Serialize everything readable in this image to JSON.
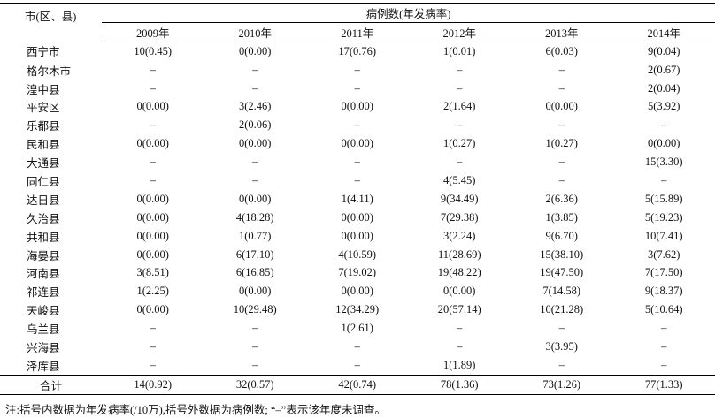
{
  "table": {
    "header": {
      "region": "市(区、县)",
      "group": "病例数(年发病率)",
      "years": [
        "2009年",
        "2010年",
        "2011年",
        "2012年",
        "2013年",
        "2014年"
      ]
    },
    "rows": [
      [
        "西宁市",
        "10(0.45)",
        "0(0.00)",
        "17(0.76)",
        "1(0.01)",
        "6(0.03)",
        "9(0.04)"
      ],
      [
        "格尔木市",
        "–",
        "–",
        "–",
        "–",
        "–",
        "2(0.67)"
      ],
      [
        "湟中县",
        "–",
        "–",
        "–",
        "–",
        "–",
        "2(0.04)"
      ],
      [
        "平安区",
        "0(0.00)",
        "3(2.46)",
        "0(0.00)",
        "2(1.64)",
        "0(0.00)",
        "5(3.92)"
      ],
      [
        "乐都县",
        "–",
        "2(0.06)",
        "–",
        "–",
        "–",
        "–"
      ],
      [
        "民和县",
        "0(0.00)",
        "0(0.00)",
        "0(0.00)",
        "1(0.27)",
        "1(0.27)",
        "0(0.00)"
      ],
      [
        "大通县",
        "–",
        "–",
        "–",
        "–",
        "–",
        "15(3.30)"
      ],
      [
        "同仁县",
        "–",
        "–",
        "–",
        "4(5.45)",
        "–",
        "–"
      ],
      [
        "达日县",
        "0(0.00)",
        "0(0.00)",
        "1(4.11)",
        "9(34.49)",
        "2(6.36)",
        "5(15.89)"
      ],
      [
        "久治县",
        "0(0.00)",
        "4(18.28)",
        "0(0.00)",
        "7(29.38)",
        "1(3.85)",
        "5(19.23)"
      ],
      [
        "共和县",
        "0(0.00)",
        "1(0.77)",
        "0(0.00)",
        "3(2.24)",
        "9(6.70)",
        "10(7.41)"
      ],
      [
        "海晏县",
        "0(0.00)",
        "6(17.10)",
        "4(10.59)",
        "11(28.69)",
        "15(38.10)",
        "3(7.62)"
      ],
      [
        "河南县",
        "3(8.51)",
        "6(16.85)",
        "7(19.02)",
        "19(48.22)",
        "19(47.50)",
        "7(17.50)"
      ],
      [
        "祁连县",
        "1(2.25)",
        "0(0.00)",
        "0(0.00)",
        "0(0.00)",
        "7(14.58)",
        "9(18.37)"
      ],
      [
        "天峻县",
        "0(0.00)",
        "10(29.48)",
        "12(34.29)",
        "20(57.14)",
        "10(21.28)",
        "5(10.64)"
      ],
      [
        "乌兰县",
        "–",
        "–",
        "1(2.61)",
        "–",
        "–",
        "–"
      ],
      [
        "兴海县",
        "–",
        "–",
        "–",
        "–",
        "3(3.95)",
        "–"
      ],
      [
        "泽库县",
        "–",
        "–",
        "–",
        "1(1.89)",
        "–",
        "–"
      ]
    ],
    "total": [
      "合计",
      "14(0.92)",
      "32(0.57)",
      "42(0.74)",
      "78(1.36)",
      "73(1.26)",
      "77(1.33)"
    ]
  },
  "note": "注:括号内数据为年发病率(/10万),括号外数据为病例数; “–”表示该年度未调查。"
}
